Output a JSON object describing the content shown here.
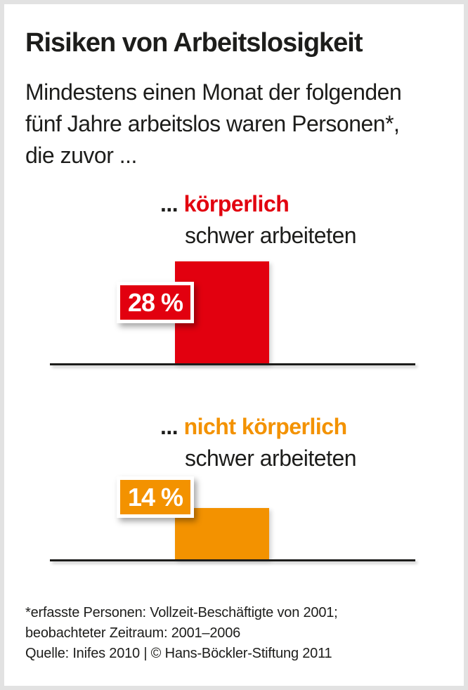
{
  "header": {
    "title": "Risiken von Arbeitslosigkeit",
    "subtitle_lines": [
      "Mindestens einen Monat der folgenden",
      "fünf Jahre arbeitslos waren Personen*,",
      "die zuvor ..."
    ]
  },
  "groups": [
    {
      "ellipsis": "...",
      "highlight": "körperlich",
      "rest": "schwer arbeiteten",
      "value": 28,
      "value_label": "28 %",
      "color": "#e2000f"
    },
    {
      "ellipsis": "...",
      "highlight": "nicht körperlich",
      "rest": "schwer arbeiteten",
      "value": 14,
      "value_label": "14 %",
      "color": "#f39200"
    }
  ],
  "footnote": {
    "lines": [
      "*erfasste Personen: Vollzeit-Beschäftigte von 2001;",
      "beobachteter Zeitraum: 2001–2006"
    ],
    "source": "Quelle: Inifes 2010 | © Hans-Böckler-Stiftung 2011"
  },
  "colors": {
    "red": "#e2000f",
    "orange": "#f39200",
    "text": "#1d1d1b",
    "frame": "#e2e2e2"
  },
  "chart_data": {
    "type": "bar",
    "orientation": "vertical",
    "title": "Risiken von Arbeitslosigkeit",
    "subtitle": "Mindestens einen Monat der folgenden fünf Jahre arbeitslos waren Personen*, die zuvor ...",
    "categories": [
      "... körperlich schwer arbeiteten",
      "... nicht körperlich schwer arbeiteten"
    ],
    "values": [
      28,
      14
    ],
    "unit": "%",
    "value_labels": [
      "28 %",
      "14 %"
    ],
    "bar_colors": [
      "#e2000f",
      "#f39200"
    ],
    "ylim": [
      0,
      30
    ],
    "grid": false,
    "legend": false,
    "footnote": "*erfasste Personen: Vollzeit-Beschäftigte von 2001; beobachteter Zeitraum: 2001–2006",
    "source": "Quelle: Inifes 2010 | © Hans-Böckler-Stiftung 2011"
  }
}
